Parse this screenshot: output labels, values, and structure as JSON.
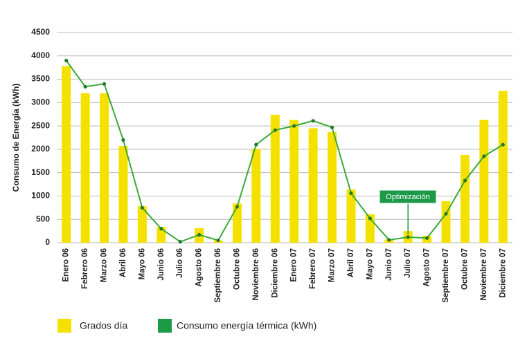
{
  "chart_data": {
    "type": "combo",
    "y_label": "Consumo de Energía (kWh)",
    "annotation": "Optimización",
    "categories": [
      "Enero  06",
      "Febrero  06",
      "Marzo  06",
      "Abril  06",
      "Mayo  06",
      "Junio  06",
      "Julio  06",
      "Agosto  06",
      "Septiembre  06",
      "Octubre  06",
      "Noviembre  06",
      "Diciembre  06",
      "Enero  07",
      "Febrero  07",
      "Marzo  07",
      "Abril  07",
      "Mayo  07",
      "Junio  07",
      "Julio  07",
      "Agosto  07",
      "Septiembre  07",
      "Octubre  07",
      "Noviembre  07",
      "Diciembre  07"
    ],
    "series": [
      {
        "name": "Grados día",
        "type": "bar",
        "color": "#f5e100",
        "values": [
          3780,
          3200,
          3200,
          2070,
          780,
          340,
          0,
          310,
          50,
          840,
          2010,
          2740,
          2630,
          2450,
          2370,
          1140,
          610,
          70,
          250,
          150,
          890,
          1880,
          2630,
          3250
        ]
      },
      {
        "name": "Consumo energía térmica (kWh)",
        "type": "line",
        "color": "#3aa935",
        "legend_color": "#1c9a48",
        "values": [
          3900,
          3340,
          3400,
          2200,
          750,
          300,
          20,
          170,
          50,
          770,
          2100,
          2410,
          2500,
          2610,
          2470,
          1060,
          520,
          60,
          120,
          100,
          620,
          1330,
          1850,
          2100
        ]
      }
    ],
    "ylim": [
      0,
      4500
    ],
    "yticks": [
      0,
      500,
      1000,
      1500,
      2000,
      2500,
      3000,
      3500,
      4000,
      4500
    ],
    "grid": true
  }
}
